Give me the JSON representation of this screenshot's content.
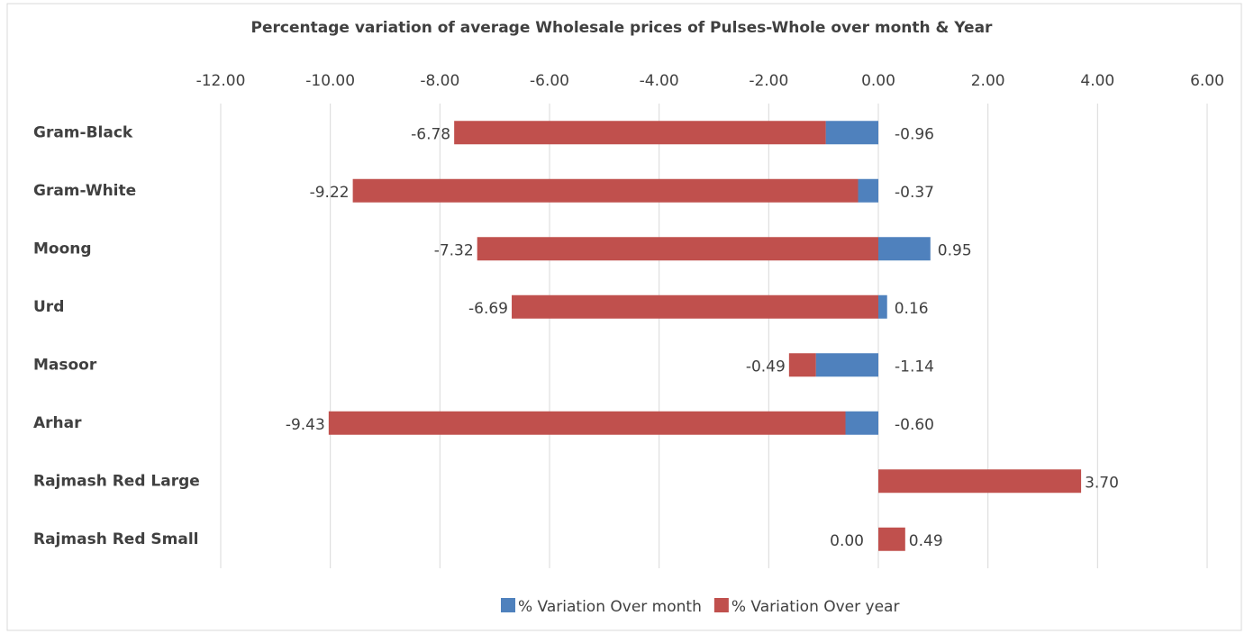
{
  "chart_data": {
    "type": "stacked-bar-horizontal",
    "title": "Percentage variation of  average  Wholesale prices of Pulses-Whole over month & Year",
    "categories": [
      "Gram-Black",
      "Gram-White",
      "Moong",
      "Urd",
      "Masoor",
      "Arhar",
      "Rajmash Red Large",
      "Rajmash Red  Small"
    ],
    "series": [
      {
        "name": "% Variation Over month",
        "color": "#4f81bd",
        "values": [
          -0.96,
          -0.37,
          0.95,
          0.16,
          -1.14,
          -0.6,
          null,
          0
        ],
        "value_labels": [
          "-0.96",
          "-0.37",
          "0.95",
          "0.16",
          "-1.14",
          "-0.60",
          null,
          "0.00"
        ]
      },
      {
        "name": "% Variation Over year",
        "color": "#c0504d",
        "values": [
          -6.78,
          -9.22,
          -7.32,
          -6.69,
          -0.49,
          -9.43,
          3.7,
          0.49
        ],
        "value_labels": [
          "-6.78",
          "-9.22",
          "-7.32",
          "-6.69",
          "-0.49",
          "-9.43",
          "3.70",
          "0.49"
        ]
      }
    ],
    "xlim": [
      -12,
      6
    ],
    "xticks": [
      {
        "value": -12,
        "label": "-12.00"
      },
      {
        "value": -10,
        "label": "-10.00"
      },
      {
        "value": -8,
        "label": "-8.00"
      },
      {
        "value": -6,
        "label": "-6.00"
      },
      {
        "value": -4,
        "label": "-4.00"
      },
      {
        "value": -2,
        "label": "-2.00"
      },
      {
        "value": 0,
        "label": "0.00"
      },
      {
        "value": 2,
        "label": "2.00"
      },
      {
        "value": 4,
        "label": "4.00"
      },
      {
        "value": 6,
        "label": "6.00"
      }
    ],
    "grid": true,
    "legend": "bottom"
  }
}
